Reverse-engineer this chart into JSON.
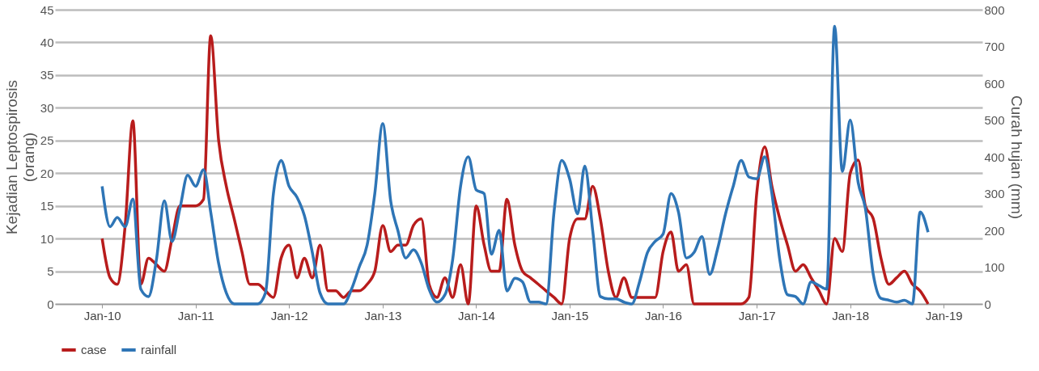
{
  "chart_data": {
    "type": "line",
    "ylabel": "Kejadian Leptospirosis\n(orang)",
    "y2label": "Curah hujan (mm)",
    "x": [
      "2010-01",
      "2010-02",
      "2010-03",
      "2010-04",
      "2010-05",
      "2010-06",
      "2010-07",
      "2010-08",
      "2010-09",
      "2010-10",
      "2010-11",
      "2010-12",
      "2011-01",
      "2011-02",
      "2011-03",
      "2011-04",
      "2011-05",
      "2011-06",
      "2011-07",
      "2011-08",
      "2011-09",
      "2011-10",
      "2011-11",
      "2011-12",
      "2012-01",
      "2012-02",
      "2012-03",
      "2012-04",
      "2012-05",
      "2012-06",
      "2012-07",
      "2012-08",
      "2012-09",
      "2012-10",
      "2012-11",
      "2012-12",
      "2013-01",
      "2013-02",
      "2013-03",
      "2013-04",
      "2013-05",
      "2013-06",
      "2013-07",
      "2013-08",
      "2013-09",
      "2013-10",
      "2013-11",
      "2013-12",
      "2014-01",
      "2014-02",
      "2014-03",
      "2014-04",
      "2014-05",
      "2014-06",
      "2014-07",
      "2014-08",
      "2014-09",
      "2014-10",
      "2014-11",
      "2014-12",
      "2015-01",
      "2015-02",
      "2015-03",
      "2015-04",
      "2015-05",
      "2015-06",
      "2015-07",
      "2015-08",
      "2015-09",
      "2015-10",
      "2015-11",
      "2015-12",
      "2016-01",
      "2016-02",
      "2016-03",
      "2016-04",
      "2016-05",
      "2016-06",
      "2016-07",
      "2016-08",
      "2016-09",
      "2016-10",
      "2016-11",
      "2016-12",
      "2017-01",
      "2017-02",
      "2017-03",
      "2017-04",
      "2017-05",
      "2017-06",
      "2017-07",
      "2017-08",
      "2017-09",
      "2017-10",
      "2017-11",
      "2017-12",
      "2018-01",
      "2018-02",
      "2018-03",
      "2018-04",
      "2018-05",
      "2018-06",
      "2018-07",
      "2018-08",
      "2018-09",
      "2018-10",
      "2018-11"
    ],
    "series": [
      {
        "name": "case",
        "color": "#b81c1c",
        "axis": "y",
        "values": [
          10,
          4,
          3,
          12,
          28,
          3,
          7,
          6,
          5,
          10,
          15,
          15,
          15,
          16,
          41,
          25,
          18,
          13,
          8,
          3,
          3,
          2,
          1,
          7,
          9,
          4,
          7,
          4,
          9,
          2,
          2,
          1,
          2,
          2,
          3,
          5,
          12,
          8,
          9,
          9,
          12,
          13,
          3,
          1,
          4,
          1,
          6,
          0,
          15,
          9,
          5,
          5,
          16,
          9,
          5,
          4,
          3,
          2,
          1,
          0,
          10,
          13,
          13,
          18,
          13,
          5,
          1,
          4,
          1,
          1,
          1,
          1,
          8,
          11,
          5,
          6,
          0,
          0,
          0,
          0,
          0,
          0,
          0,
          1,
          17,
          24,
          18,
          13,
          9,
          5,
          6,
          4,
          2,
          0,
          10,
          8,
          20,
          22,
          15,
          13,
          7,
          3,
          4,
          5,
          3,
          2,
          0
        ]
      },
      {
        "name": "rainfall",
        "color": "#2e75b6",
        "axis": "y2",
        "values": [
          320,
          210,
          235,
          210,
          285,
          40,
          20,
          120,
          280,
          170,
          260,
          350,
          320,
          365,
          250,
          110,
          30,
          0,
          0,
          0,
          0,
          30,
          300,
          390,
          320,
          290,
          240,
          140,
          30,
          0,
          0,
          0,
          40,
          100,
          160,
          300,
          490,
          280,
          200,
          125,
          147,
          110,
          40,
          5,
          25,
          120,
          320,
          400,
          310,
          300,
          135,
          200,
          35,
          70,
          60,
          5,
          5,
          0,
          250,
          390,
          340,
          245,
          375,
          200,
          20,
          14,
          14,
          5,
          0,
          60,
          140,
          170,
          190,
          300,
          250,
          125,
          140,
          183,
          80,
          150,
          245,
          320,
          390,
          345,
          340,
          400,
          300,
          120,
          25,
          20,
          0,
          60,
          50,
          40,
          755,
          360,
          500,
          330,
          260,
          80,
          15,
          10,
          5,
          10,
          0,
          250,
          195
        ]
      }
    ],
    "xlim": [
      "2009-07",
      "2019-06"
    ],
    "xticks": [
      {
        "value": "2010-01",
        "label": "Jan-10"
      },
      {
        "value": "2011-01",
        "label": "Jan-11"
      },
      {
        "value": "2012-01",
        "label": "Jan-12"
      },
      {
        "value": "2013-01",
        "label": "Jan-13"
      },
      {
        "value": "2014-01",
        "label": "Jan-14"
      },
      {
        "value": "2015-01",
        "label": "Jan-15"
      },
      {
        "value": "2016-01",
        "label": "Jan-16"
      },
      {
        "value": "2017-01",
        "label": "Jan-17"
      },
      {
        "value": "2018-01",
        "label": "Jan-18"
      },
      {
        "value": "2019-01",
        "label": "Jan-19"
      }
    ],
    "ylim": [
      0,
      45
    ],
    "yticks": [
      0,
      5,
      10,
      15,
      20,
      25,
      30,
      35,
      40,
      45
    ],
    "y2lim": [
      0,
      800
    ],
    "y2ticks": [
      0,
      100,
      200,
      300,
      400,
      500,
      600,
      700,
      800
    ],
    "grid": "y",
    "legend": "bottom",
    "marker": "none",
    "line_style": "solid"
  }
}
